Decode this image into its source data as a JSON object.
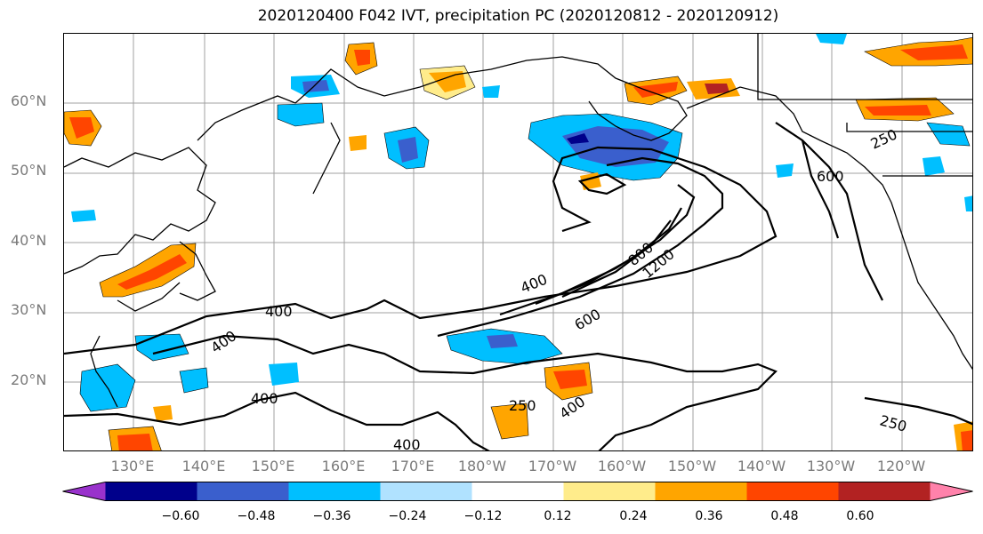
{
  "title": "2020120400 F042 IVT, precipitation PC (2020120812 - 2020120912)",
  "lat_labels": [
    "60°N",
    "50°N",
    "40°N",
    "30°N",
    "20°N"
  ],
  "lon_labels": [
    "130°E",
    "140°E",
    "150°E",
    "160°E",
    "170°E",
    "180°W",
    "170°W",
    "160°W",
    "150°W",
    "140°W",
    "130°W",
    "120°W"
  ],
  "contour_labels": [
    "400",
    "400",
    "400",
    "400",
    "600",
    "800",
    "1200",
    "250",
    "250",
    "250",
    "600",
    "400",
    "400"
  ],
  "colorbar": {
    "ticks": [
      "−0.60",
      "−0.48",
      "−0.36",
      "−0.24",
      "−0.12",
      "0.12",
      "0.24",
      "0.36",
      "0.48",
      "0.60"
    ],
    "colors": [
      "#9932cc",
      "#00008b",
      "#3a5fcd",
      "#00bfff",
      "#b0e2ff",
      "#ffffff",
      "#ffec8b",
      "#ffa500",
      "#ff4500",
      "#b22222",
      "#ff82ab"
    ]
  },
  "colors": {
    "land_line": "#000000",
    "grid": "#a0a0a0",
    "contour": "#000000"
  }
}
